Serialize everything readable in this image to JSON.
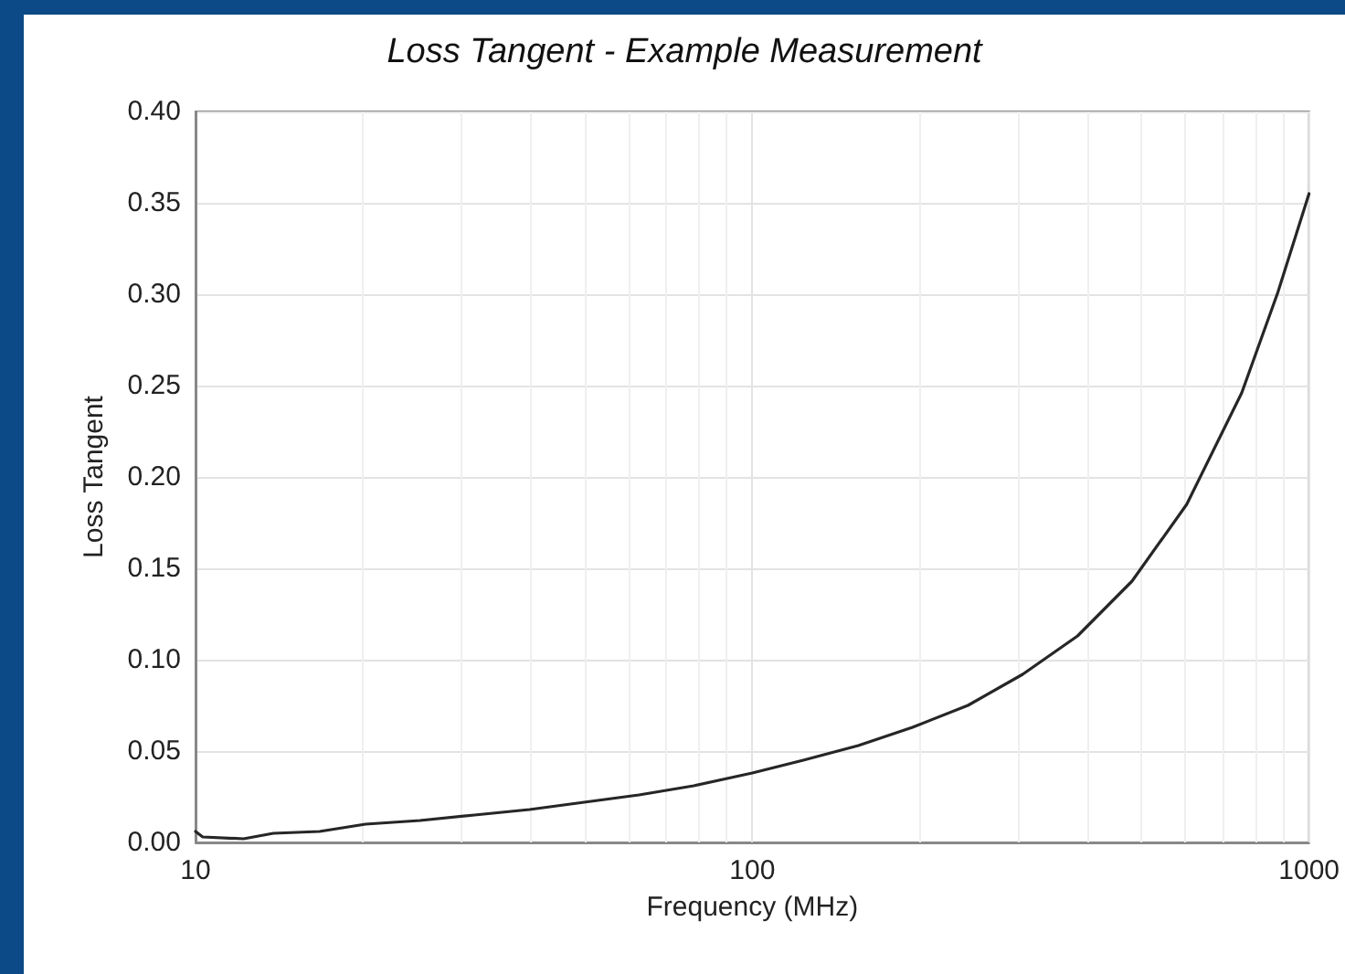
{
  "chart_data": {
    "type": "line",
    "title": "Loss Tangent - Example Measurement",
    "xlabel": "Frequency (MHz)",
    "ylabel": "Loss Tangent",
    "x": [
      10,
      10.3,
      12.2,
      13.8,
      16.7,
      20.2,
      25.3,
      31.7,
      39.8,
      49.9,
      62.6,
      78.5,
      100,
      123.5,
      155,
      194,
      244,
      306,
      384,
      481,
      603,
      757,
      879,
      1000
    ],
    "series": [
      {
        "color": "#262626",
        "values": [
          0.006,
          0.003,
          0.002,
          0.005,
          0.006,
          0.01,
          0.012,
          0.015,
          0.018,
          0.022,
          0.026,
          0.031,
          0.038,
          0.045,
          0.053,
          0.063,
          0.075,
          0.092,
          0.113,
          0.143,
          0.185,
          0.246,
          0.301,
          0.355
        ]
      }
    ],
    "log": "x",
    "xlim": [
      10,
      1000
    ],
    "xticks": [
      10,
      100,
      1000
    ],
    "ylim": [
      0,
      0.4
    ],
    "yticks": [
      {
        "value": 0,
        "label": "0.00"
      },
      {
        "value": 0.05,
        "label": "0.05"
      },
      {
        "value": 0.1,
        "label": "0.10"
      },
      {
        "value": 0.15,
        "label": "0.15"
      },
      {
        "value": 0.2,
        "label": "0.20"
      },
      {
        "value": 0.25,
        "label": "0.25"
      },
      {
        "value": 0.3,
        "label": "0.30"
      },
      {
        "value": 0.35,
        "label": "0.35"
      },
      {
        "value": 0.4,
        "label": "0.40"
      }
    ],
    "grid": true,
    "marker": "none",
    "line_style": "solid"
  }
}
